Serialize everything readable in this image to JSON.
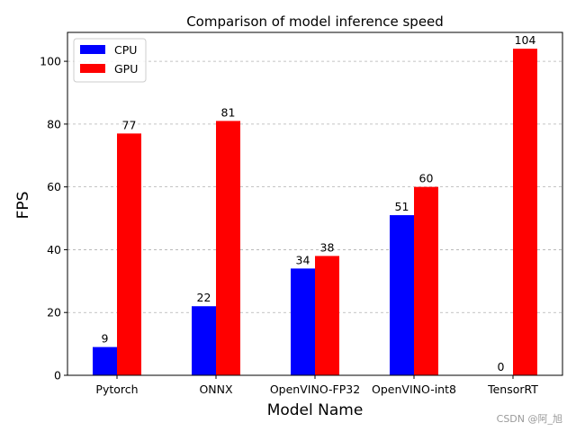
{
  "chart_data": {
    "type": "bar",
    "title": "Comparison of model inference speed",
    "xlabel": "Model Name",
    "ylabel": "FPS",
    "categories": [
      "Pytorch",
      "ONNX",
      "OpenVINO-FP32",
      "OpenVINO-int8",
      "TensorRT"
    ],
    "series": [
      {
        "name": "CPU",
        "color": "#0000ff",
        "values": [
          9,
          22,
          34,
          51,
          0
        ]
      },
      {
        "name": "GPU",
        "color": "#ff0000",
        "values": [
          77,
          81,
          38,
          60,
          104
        ]
      }
    ],
    "ylim": [
      0,
      109.2
    ],
    "yticks": [
      0,
      20,
      40,
      60,
      80,
      100
    ],
    "grid": "y-dashed",
    "legend": "top-left"
  },
  "watermark": "CSDN @阿_旭"
}
